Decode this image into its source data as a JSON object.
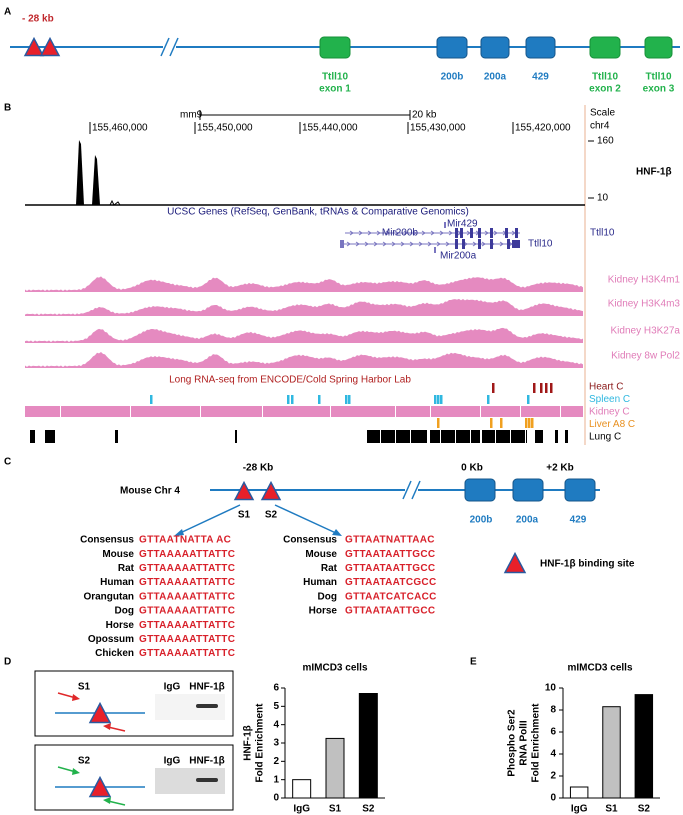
{
  "panels": {
    "A": {
      "label": "A",
      "distance": "- 28 kb",
      "genes": [
        {
          "lines": [
            "Ttll10",
            "exon 1"
          ]
        },
        {
          "lines": [
            "200b"
          ]
        },
        {
          "lines": [
            "200a"
          ]
        },
        {
          "lines": [
            "429"
          ]
        },
        {
          "lines": [
            "Ttll10",
            "exon 2"
          ]
        },
        {
          "lines": [
            "Ttll10",
            "exon 3"
          ]
        }
      ]
    },
    "B": {
      "label": "B",
      "assembly": "mm9",
      "scale_length": "20 kb",
      "scale": "Scale",
      "chromosome": "chr4",
      "positions": [
        "155,460,000",
        "155,450,000",
        "155,440,000",
        "155,430,000",
        "155,420,000"
      ],
      "chip": {
        "max": "160",
        "min": "10",
        "name": "HNF-1β"
      },
      "genes_track": "UCSC Genes (RefSeq, GenBank, tRNAs & Comparative Genomics)",
      "gene_names": [
        "Mir429",
        "Mir200b",
        "Ttll10",
        "Ttll10",
        "Mir200a"
      ],
      "signal_tracks": [
        "Kidney H3K4m1",
        "Kidney H3K4m3",
        "Kidney H3K27a",
        "Kidney 8w Pol2"
      ],
      "rnaseq_track": "Long RNA-seq from ENCODE/Cold Spring Harbor Lab",
      "rnaseq_tissues": [
        "Heart C",
        "Spleen C",
        "Kidney C",
        "Liver A8 C",
        "Lung C"
      ]
    },
    "C": {
      "label": "C",
      "coordinates": [
        "-28 Kb",
        "0 Kb",
        "+2 Kb"
      ],
      "chromosome": "Mouse Chr 4",
      "sites": [
        "S1",
        "S2"
      ],
      "genes": [
        "200b",
        "200a",
        "429"
      ],
      "alignments": [
        {
          "rows": [
            [
              "Consensus",
              "GTTAATNATTA AC"
            ],
            [
              "Mouse",
              "GTTAAAAATTATTC"
            ],
            [
              "Rat",
              "GTTAAAAATTATTC"
            ],
            [
              "Human",
              "GTTAAAAATTATTC"
            ],
            [
              "Orangutan",
              "GTTAAAAATTATTC"
            ],
            [
              "Dog",
              "GTTAAAAATTATTC"
            ],
            [
              "Horse",
              "GTTAAAAATTATTC"
            ],
            [
              "Opossum",
              "GTTAAAAATTATTC"
            ],
            [
              "Chicken",
              "GTTAAAAATTATTC"
            ]
          ]
        },
        {
          "rows": [
            [
              "Consensus",
              "GTTAATNATTAAC"
            ],
            [
              "Mouse",
              "GTTAATAATTGCC"
            ],
            [
              "Rat",
              "GTTAATAATTGCC"
            ],
            [
              "Human",
              "GTTAATAATCGCC"
            ],
            [
              "Dog",
              "GTTAATCATCACC"
            ],
            [
              "Horse",
              "GTTAATAATTGCC"
            ]
          ]
        }
      ],
      "legend": "HNF-1β binding site"
    },
    "D": {
      "label": "D",
      "gels": [
        {
          "site": "S1",
          "lanes": [
            "IgG",
            "HNF-1β"
          ]
        },
        {
          "site": "S2",
          "lanes": [
            "IgG",
            "HNF-1β"
          ]
        }
      ]
    },
    "E": {
      "label": "E"
    }
  },
  "chart_data": [
    {
      "type": "bar",
      "title": "mIMCD3 cells",
      "ylabel": [
        "HNF-1β",
        "Fold Enrichment"
      ],
      "categories": [
        "IgG",
        "S1",
        "S2"
      ],
      "values": [
        1,
        3.25,
        5.7
      ],
      "colors": [
        "#ffffff",
        "#c0c0c0",
        "#000000"
      ],
      "ylim": [
        0,
        6
      ],
      "yticks": [
        0,
        1,
        2,
        3,
        4,
        5,
        6
      ]
    },
    {
      "type": "bar",
      "title": "mIMCD3 cells",
      "ylabel": [
        "Phospho Ser2",
        "RNA PolII",
        "Fold Enrichment"
      ],
      "categories": [
        "IgG",
        "S1",
        "S2"
      ],
      "values": [
        1,
        8.3,
        9.4
      ],
      "colors": [
        "#ffffff",
        "#c0c0c0",
        "#000000"
      ],
      "ylim": [
        0,
        10
      ],
      "yticks": [
        0,
        2,
        4,
        6,
        8,
        10
      ]
    }
  ]
}
